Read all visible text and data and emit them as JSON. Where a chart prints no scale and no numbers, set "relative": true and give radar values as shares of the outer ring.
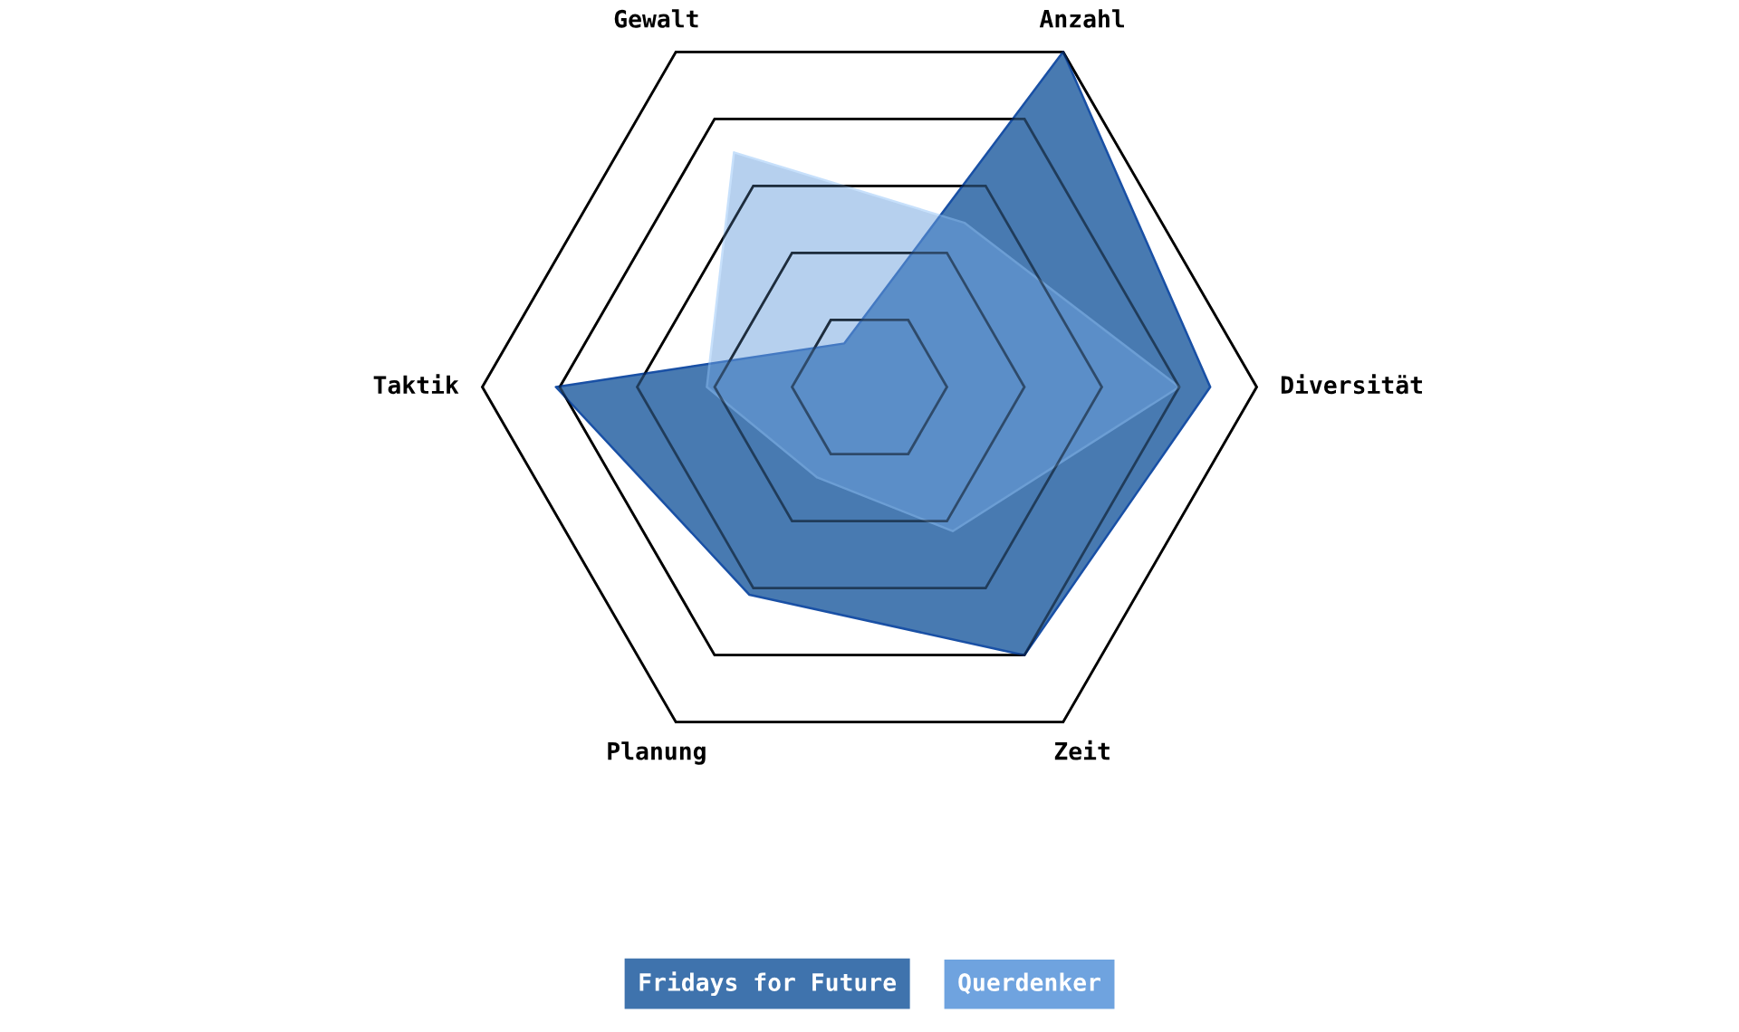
{
  "chart_data": {
    "type": "radar",
    "relative": true,
    "categories": [
      "Anzahl",
      "Diversität",
      "Zeit",
      "Planung",
      "Taktik",
      "Gewalt"
    ],
    "series": [
      {
        "name": "Fridays for Future",
        "color": "#3f73ad",
        "values": [
          1.0,
          0.88,
          0.8,
          0.62,
          0.81,
          0.13
        ]
      },
      {
        "name": "Querdenker",
        "color": "#6fa3df",
        "values": [
          0.49,
          0.8,
          0.43,
          0.27,
          0.42,
          0.7
        ]
      }
    ],
    "grid": true,
    "legend": "bottom"
  }
}
